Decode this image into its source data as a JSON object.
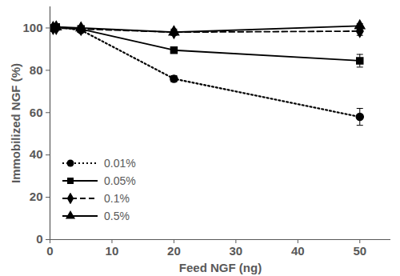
{
  "chart_data": {
    "type": "line",
    "x_label": "Feed NGF (ng)",
    "y_label": "Immobilized NGF (%)",
    "x": [
      0.5,
      1,
      5,
      20,
      50
    ],
    "xlim": [
      0,
      55
    ],
    "xticks": [
      0,
      10,
      20,
      30,
      40,
      50
    ],
    "ylim": [
      0,
      110
    ],
    "yticks": [
      0,
      20,
      40,
      60,
      80,
      100
    ],
    "grid": false,
    "legend": "lower left",
    "series": [
      {
        "name": "0.01%",
        "color": "#000000",
        "marker": "circle",
        "line_style": "dotted",
        "values": [
          100,
          100.5,
          99,
          76,
          58
        ],
        "errors": [
          0.5,
          0.5,
          1,
          1.5,
          4
        ]
      },
      {
        "name": "0.05%",
        "color": "#000000",
        "marker": "square",
        "line_style": "solid",
        "values": [
          100,
          100.5,
          99.5,
          89.5,
          84.5
        ],
        "errors": [
          0.5,
          0.5,
          1,
          1,
          3
        ]
      },
      {
        "name": "0.1%",
        "color": "#000000",
        "marker": "diamond",
        "line_style": "dashed",
        "values": [
          100,
          100,
          99.5,
          98,
          98.5
        ],
        "errors": [
          0.5,
          0.5,
          1,
          1,
          2
        ]
      },
      {
        "name": "0.5%",
        "color": "#000000",
        "marker": "triangle",
        "line_style": "solid",
        "values": [
          100,
          100.5,
          100,
          98,
          101
        ],
        "errors": [
          0.5,
          0.5,
          1,
          1.5,
          1
        ]
      }
    ]
  }
}
